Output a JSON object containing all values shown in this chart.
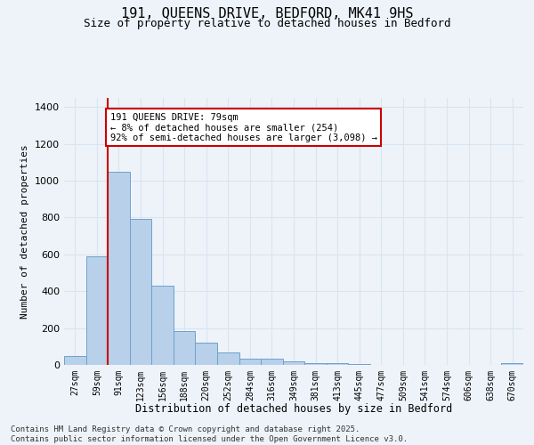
{
  "title": "191, QUEENS DRIVE, BEDFORD, MK41 9HS",
  "subtitle": "Size of property relative to detached houses in Bedford",
  "xlabel": "Distribution of detached houses by size in Bedford",
  "ylabel": "Number of detached properties",
  "bar_values": [
    50,
    590,
    1050,
    795,
    430,
    183,
    120,
    68,
    35,
    35,
    18,
    12,
    8,
    3,
    2,
    1,
    0,
    0,
    0,
    0,
    10
  ],
  "categories": [
    "27sqm",
    "59sqm",
    "91sqm",
    "123sqm",
    "156sqm",
    "188sqm",
    "220sqm",
    "252sqm",
    "284sqm",
    "316sqm",
    "349sqm",
    "381sqm",
    "413sqm",
    "445sqm",
    "477sqm",
    "509sqm",
    "541sqm",
    "574sqm",
    "606sqm",
    "638sqm",
    "670sqm"
  ],
  "bar_color": "#b8d0ea",
  "bar_edge_color": "#6ba3cb",
  "vline_x": 1.5,
  "vline_color": "#cc0000",
  "annotation_text": "191 QUEENS DRIVE: 79sqm\n← 8% of detached houses are smaller (254)\n92% of semi-detached houses are larger (3,098) →",
  "annotation_box_color": "#ffffff",
  "annotation_box_edge": "#cc0000",
  "ylim": [
    0,
    1450
  ],
  "yticks": [
    0,
    200,
    400,
    600,
    800,
    1000,
    1200,
    1400
  ],
  "bg_color": "#eef3fa",
  "grid_color": "#d8e4f0",
  "footer": "Contains HM Land Registry data © Crown copyright and database right 2025.\nContains public sector information licensed under the Open Government Licence v3.0."
}
